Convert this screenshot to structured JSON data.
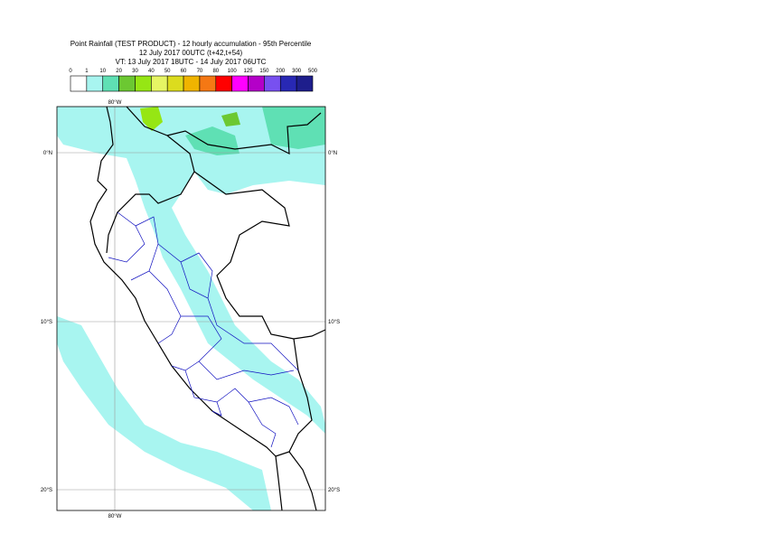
{
  "header": {
    "title": "Point Rainfall (TEST PRODUCT) - 12 hourly accumulation - 95th Percentile",
    "subtitle": "12 July 2017 00UTC (t+42,t+54)",
    "valid_time": "VT: 13 July 2017 18UTC - 14 July 2017 06UTC"
  },
  "legend": {
    "labels": [
      "0",
      "1",
      "10",
      "20",
      "30",
      "40",
      "50",
      "60",
      "70",
      "80",
      "100",
      "125",
      "150",
      "200",
      "300",
      "500"
    ],
    "colors": [
      "#ffffff",
      "#a8f5f0",
      "#5fe0b4",
      "#6cc832",
      "#96e614",
      "#e6f564",
      "#dcdc1e",
      "#f0b400",
      "#f57814",
      "#ff0000",
      "#ff00ff",
      "#b400c8",
      "#7850f0",
      "#2828b4",
      "#1e1e8c"
    ]
  },
  "map": {
    "lon_labels": [
      "80°W",
      "80°W"
    ],
    "lat_labels": [
      "0°N",
      "10°S",
      "20°S",
      "0°N",
      "10°S",
      "20°S"
    ]
  }
}
